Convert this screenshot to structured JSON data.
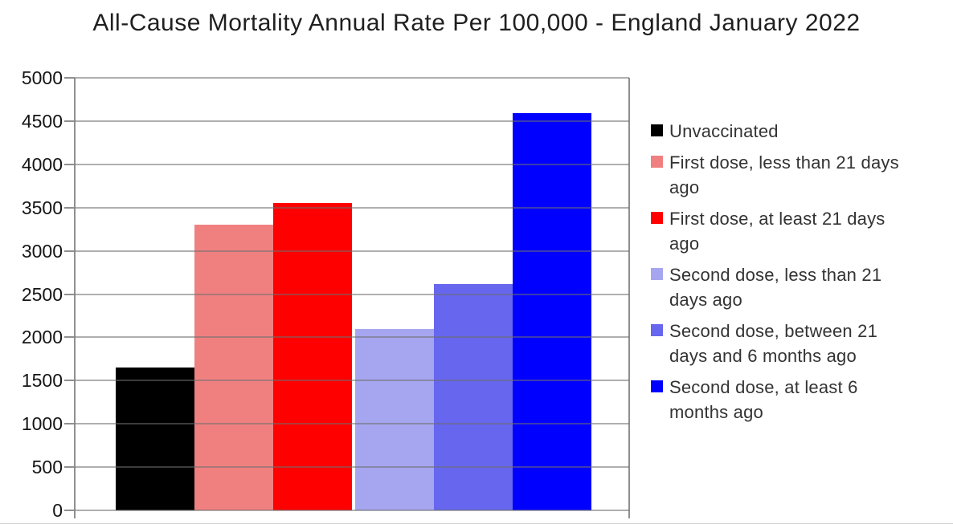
{
  "chart_data": {
    "type": "bar",
    "title": "All-Cause Mortality Annual Rate Per 100,000 - England January 2022",
    "categories": [
      "England January 2022"
    ],
    "series": [
      {
        "name": "Unvaccinated",
        "legend_lines": [
          "Unvaccinated"
        ],
        "value": 1650,
        "color": "#000000"
      },
      {
        "name": "First dose, less than 21 days ago",
        "legend_lines": [
          "First dose, less than 21 days",
          "ago"
        ],
        "value": 3300,
        "color": "#f08080"
      },
      {
        "name": "First dose, at least 21 days ago",
        "legend_lines": [
          "First dose, at least 21 days",
          "ago"
        ],
        "value": 3550,
        "color": "#ff0000"
      },
      {
        "name": "Second dose, less than 21 days ago",
        "legend_lines": [
          "Second dose, less than 21",
          "days ago"
        ],
        "value": 2100,
        "color": "#a6a6f0"
      },
      {
        "name": "Second dose, between 21 days and 6 months ago",
        "legend_lines": [
          "Second dose, between 21",
          "days and 6 months ago"
        ],
        "value": 2620,
        "color": "#6666ee"
      },
      {
        "name": "Second dose, at least 6 months ago",
        "legend_lines": [
          "Second dose, at least 6",
          "months ago"
        ],
        "value": 4590,
        "color": "#0000ff"
      }
    ],
    "ylabel": "",
    "xlabel": "",
    "ylim": [
      0,
      5000
    ],
    "ytick_step": 500,
    "ytick_labels": [
      "0",
      "500",
      "1000",
      "1500",
      "2000",
      "2500",
      "3000",
      "3500",
      "4000",
      "4500",
      "5000"
    ],
    "grid": true,
    "gridline_color": "#8f8f8f",
    "legend_position": "right",
    "background_color": "#ffffff",
    "title_color": "#1f1f1f"
  }
}
